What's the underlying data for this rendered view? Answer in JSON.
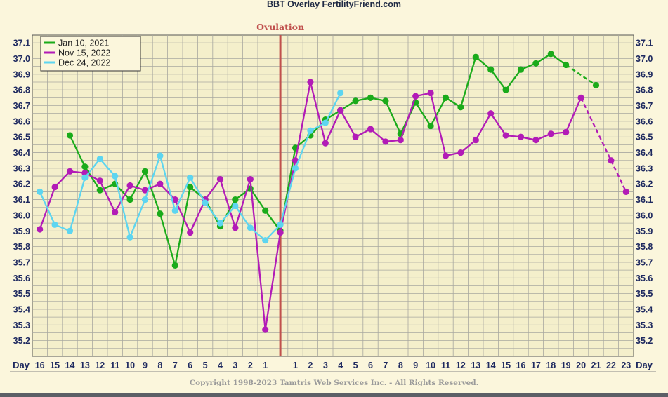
{
  "title": "BBT Overlay FertilityFriend.com",
  "copyright": "Copyright 1998-2023 Tamtris Web Services Inc. - All Rights Reserved.",
  "chart_data": {
    "type": "line",
    "ovulation_label": "Ovulation",
    "axis_day_label": "Day",
    "x_labels": [
      "16",
      "15",
      "14",
      "13",
      "12",
      "11",
      "10",
      "9",
      "8",
      "7",
      "6",
      "5",
      "4",
      "3",
      "2",
      "1",
      "",
      "1",
      "2",
      "3",
      "4",
      "5",
      "6",
      "7",
      "8",
      "9",
      "10",
      "11",
      "12",
      "13",
      "14",
      "15",
      "16",
      "17",
      "18",
      "19",
      "20",
      "21",
      "22",
      "23"
    ],
    "ovulation_index": 16,
    "y_ticks": [
      35.2,
      35.3,
      35.4,
      35.5,
      35.6,
      35.7,
      35.8,
      35.9,
      36.0,
      36.1,
      36.2,
      36.3,
      36.4,
      36.5,
      36.6,
      36.7,
      36.8,
      36.9,
      37.0,
      37.1
    ],
    "ylim": [
      35.1,
      37.15
    ],
    "grid": true,
    "legend_position": "top-left",
    "series": [
      {
        "name": "Jan 10, 2021",
        "color": "#1aab1a",
        "values": [
          null,
          null,
          36.51,
          36.31,
          36.16,
          36.2,
          36.1,
          36.28,
          36.01,
          35.68,
          36.18,
          36.1,
          35.93,
          36.1,
          36.17,
          36.03,
          35.9,
          36.43,
          36.51,
          36.61,
          36.67,
          36.73,
          36.75,
          36.73,
          36.52,
          36.72,
          36.57,
          36.75,
          36.69,
          37.01,
          36.93,
          36.8,
          36.93,
          36.97,
          37.03,
          36.96,
          null,
          36.83,
          null,
          null
        ],
        "dashed_from": 35
      },
      {
        "name": "Nov 15, 2022",
        "color": "#b21bb7",
        "values": [
          35.91,
          36.18,
          36.28,
          36.27,
          36.22,
          36.02,
          36.19,
          36.16,
          36.2,
          36.1,
          35.89,
          36.1,
          36.23,
          35.92,
          36.23,
          35.27,
          35.89,
          36.35,
          36.85,
          36.46,
          36.67,
          36.5,
          36.55,
          36.47,
          36.48,
          36.76,
          36.78,
          36.38,
          36.4,
          36.48,
          36.65,
          36.51,
          36.5,
          36.48,
          36.52,
          36.53,
          36.75,
          null,
          36.35,
          36.15
        ],
        "dashed_from": 36
      },
      {
        "name": "Dec 24, 2022",
        "color": "#5dd5f0",
        "values": [
          36.15,
          35.94,
          35.9,
          36.24,
          36.36,
          36.25,
          35.86,
          36.1,
          36.38,
          36.03,
          36.24,
          36.08,
          35.95,
          36.06,
          35.92,
          35.84,
          35.94,
          36.3,
          36.54,
          36.59,
          36.78,
          null,
          null,
          null,
          null,
          null,
          null,
          null,
          null,
          null,
          null,
          null,
          null,
          null,
          null,
          null,
          null,
          null,
          null,
          null
        ],
        "dashed_from": null
      }
    ]
  }
}
